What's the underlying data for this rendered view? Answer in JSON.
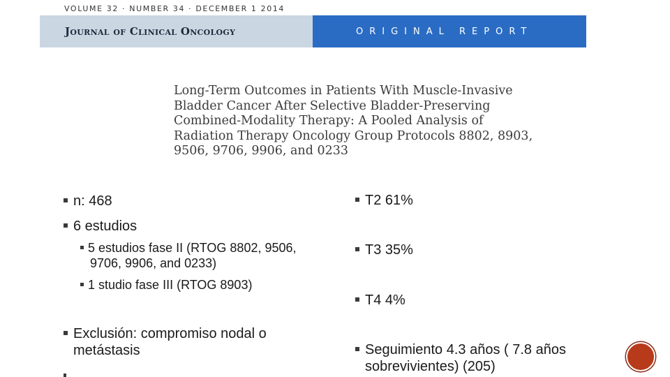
{
  "header": {
    "volume_line": "VOLUME 32 · NUMBER 34 · DECEMBER 1 2014",
    "journal_name": "Journal of Clinical Oncology",
    "report_type": "ORIGINAL REPORT"
  },
  "article": {
    "title": "Long-Term Outcomes in Patients With Muscle-Invasive\nBladder Cancer After Selective Bladder-Preserving\nCombined-Modality Therapy: A Pooled Analysis of\nRadiation Therapy Oncology Group Protocols 8802, 8903,\n9506, 9706, 9906, and 0233"
  },
  "left_column": {
    "n": "n: 468",
    "studies": "6  estudios",
    "sub_items": [
      "5 estudios fase II  (RTOG 8802, 9506, 9706, 9906, and 0233)",
      "1 studio fase III (RTOG 8903)"
    ],
    "exclusion": "Exclusión: compromiso  nodal o metástasis"
  },
  "right_column": {
    "t2": "T2 61%",
    "t3": "T3 35%",
    "t4": "T4 4%",
    "followup": "Seguimiento 4.3 años ( 7.8 años sobrevivientes) (205)"
  },
  "colors": {
    "banner_left": "#cbd6e3",
    "banner_right": "#2a6cc4",
    "badge": "#b73a1a"
  }
}
